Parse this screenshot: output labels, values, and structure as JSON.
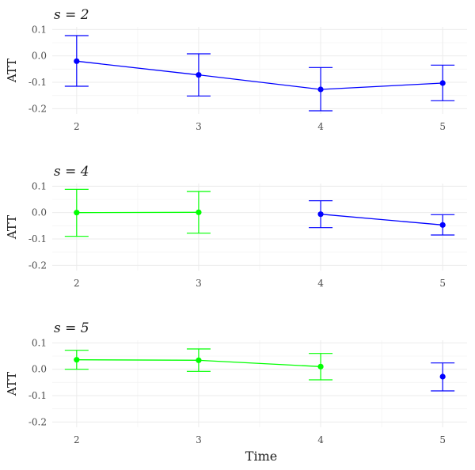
{
  "chart_data": {
    "type": "line",
    "xlabel": "Time",
    "ylabel": "ATT",
    "x_ticks": [
      2,
      3,
      4,
      5
    ],
    "y_ticks": [
      -0.2,
      -0.1,
      0.0,
      0.1
    ],
    "y_tick_labels": [
      "-0.2",
      "-0.1",
      "0.0",
      "0.1"
    ],
    "ylim": [
      -0.22,
      0.11
    ],
    "xlim": [
      1.8,
      5.2
    ],
    "grid": true,
    "colors": {
      "pre": "#00ff00",
      "post": "#0000ff"
    },
    "panels": [
      {
        "title": "s = 2",
        "points": [
          {
            "x": 2,
            "y": -0.02,
            "lo": -0.115,
            "hi": 0.077,
            "group": "post"
          },
          {
            "x": 3,
            "y": -0.072,
            "lo": -0.152,
            "hi": 0.008,
            "group": "post"
          },
          {
            "x": 4,
            "y": -0.127,
            "lo": -0.208,
            "hi": -0.044,
            "group": "post"
          },
          {
            "x": 5,
            "y": -0.103,
            "lo": -0.17,
            "hi": -0.035,
            "group": "post"
          }
        ]
      },
      {
        "title": "s = 4",
        "points": [
          {
            "x": 2,
            "y": 0.0,
            "lo": -0.09,
            "hi": 0.088,
            "group": "pre"
          },
          {
            "x": 3,
            "y": 0.001,
            "lo": -0.078,
            "hi": 0.08,
            "group": "pre"
          },
          {
            "x": 4,
            "y": -0.006,
            "lo": -0.057,
            "hi": 0.045,
            "group": "post"
          },
          {
            "x": 5,
            "y": -0.047,
            "lo": -0.085,
            "hi": -0.008,
            "group": "post"
          }
        ]
      },
      {
        "title": "s = 5",
        "points": [
          {
            "x": 2,
            "y": 0.036,
            "lo": 0.0,
            "hi": 0.072,
            "group": "pre"
          },
          {
            "x": 3,
            "y": 0.034,
            "lo": -0.008,
            "hi": 0.077,
            "group": "pre"
          },
          {
            "x": 4,
            "y": 0.01,
            "lo": -0.04,
            "hi": 0.06,
            "group": "pre"
          },
          {
            "x": 5,
            "y": -0.028,
            "lo": -0.082,
            "hi": 0.024,
            "group": "post"
          }
        ]
      }
    ]
  }
}
